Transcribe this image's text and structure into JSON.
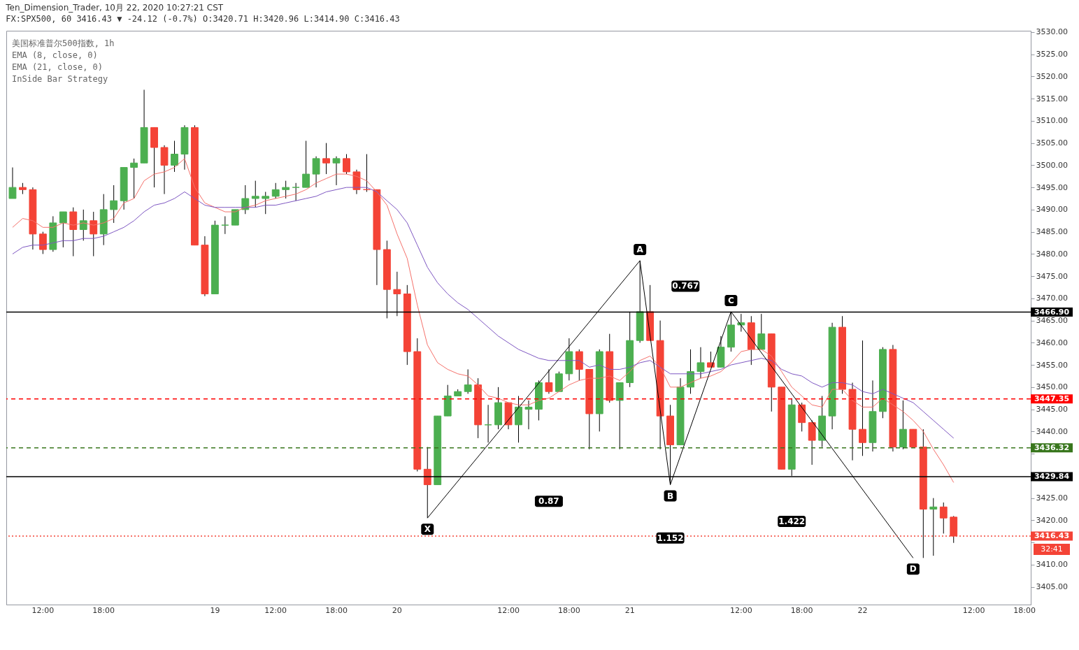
{
  "chart_data": {
    "type": "candlestick",
    "title": "Ten_Dimension_Trader, 10月 22, 2020 10:27:21 CST",
    "subtitle": "FX:SPX500, 60 3416.43 ▼ -24.12 (-0.7%) O:3420.71 H:3420.96 L:3414.90 C:3416.43",
    "categories": [
      null,
      null,
      null,
      "12:00",
      null,
      null,
      null,
      null,
      null,
      "18:00",
      null,
      null,
      null,
      null,
      null,
      null,
      null,
      null,
      null,
      null,
      "19",
      null,
      null,
      null,
      null,
      null,
      "12:00",
      null,
      null,
      null,
      null,
      null,
      "18:00",
      null,
      null,
      null,
      null,
      null,
      "20",
      null,
      null,
      null,
      null,
      null,
      null,
      null,
      null,
      null,
      null,
      "12:00",
      null,
      null,
      null,
      null,
      null,
      "18:00",
      null,
      null,
      null,
      null,
      null,
      "21",
      null,
      null,
      null,
      null,
      null,
      null,
      null,
      null,
      null,
      null,
      "12:00",
      null,
      null,
      null,
      null,
      null,
      "18:00",
      null,
      null,
      null,
      null,
      null,
      "22",
      null,
      null,
      null,
      null,
      null,
      null,
      null,
      null,
      null,
      null,
      "12:00",
      null,
      null,
      null,
      null,
      "18:00"
    ],
    "ohlc": [
      [
        3492.5,
        3499.5,
        3492.5,
        3495
      ],
      [
        3495,
        3496,
        3493.5,
        3494.5
      ],
      [
        3494.5,
        3495,
        3481,
        3484.5
      ],
      [
        3484.5,
        3485,
        3480,
        3481
      ],
      [
        3481,
        3488.5,
        3480.5,
        3487
      ],
      [
        3487,
        3489.5,
        3481.5,
        3489.5
      ],
      [
        3489.5,
        3490.5,
        3479.5,
        3485.5
      ],
      [
        3485.5,
        3490,
        3483,
        3487.5
      ],
      [
        3487.5,
        3489.5,
        3479.5,
        3484.5
      ],
      [
        3484.5,
        3493.5,
        3482,
        3490
      ],
      [
        3490,
        3495.5,
        3487,
        3492
      ],
      [
        3492,
        3499.5,
        3490,
        3499.5
      ],
      [
        3499.5,
        3501.5,
        3492.5,
        3500.5
      ],
      [
        3500.5,
        3517,
        3500.5,
        3508.5
      ],
      [
        3508.5,
        3508.5,
        3495,
        3504
      ],
      [
        3504,
        3504.5,
        3493.5,
        3500
      ],
      [
        3500,
        3505.5,
        3498.5,
        3502.5
      ],
      [
        3502.5,
        3509,
        3499,
        3508.5
      ],
      [
        3508.5,
        3509,
        3482,
        3482
      ],
      [
        3482,
        3484,
        3470.5,
        3471
      ],
      [
        3471,
        3487.5,
        3471,
        3486.5
      ],
      [
        3486.5,
        3488.5,
        3484.5,
        3486.5
      ],
      [
        3486.5,
        3490,
        3486.5,
        3490
      ],
      [
        3490,
        3495.5,
        3489,
        3492.5
      ],
      [
        3492.5,
        3496.5,
        3490.5,
        3493
      ],
      [
        3492.5,
        3494,
        3489,
        3493
      ],
      [
        3493,
        3496,
        3492.5,
        3494.5
      ],
      [
        3494.5,
        3496.5,
        3492.5,
        3495
      ],
      [
        3495,
        3496,
        3492,
        3495
      ],
      [
        3495,
        3505.5,
        3495,
        3498
      ],
      [
        3498,
        3502,
        3495,
        3501.5
      ],
      [
        3501.5,
        3505,
        3498,
        3500.5
      ],
      [
        3500.5,
        3502,
        3495.5,
        3501.5
      ],
      [
        3501.5,
        3502.5,
        3498,
        3498.5
      ],
      [
        3498.5,
        3499,
        3493.5,
        3494.5
      ],
      [
        3494.5,
        3502.5,
        3494,
        3494.5
      ],
      [
        3494.5,
        3494.5,
        3473,
        3481
      ],
      [
        3481,
        3483,
        3465.5,
        3472
      ],
      [
        3472,
        3476,
        3466,
        3471
      ],
      [
        3471,
        3473,
        3455,
        3458
      ],
      [
        3458,
        3461,
        3431,
        3431.5
      ],
      [
        3431.5,
        3436.5,
        3420.5,
        3428
      ],
      [
        3428,
        3443.5,
        3428,
        3443.5
      ],
      [
        3443.5,
        3450.5,
        3443.5,
        3448
      ],
      [
        3448,
        3449.5,
        3448,
        3449
      ],
      [
        3449,
        3454,
        3448.5,
        3450.5
      ],
      [
        3450.5,
        3452,
        3438.5,
        3441.5
      ],
      [
        3441.5,
        3446,
        3437.5,
        3441.5
      ],
      [
        3441.5,
        3450,
        3440.5,
        3446.5
      ],
      [
        3446.5,
        3446.5,
        3440.5,
        3441.5
      ],
      [
        3441.5,
        3448,
        3437.5,
        3445.5
      ],
      [
        3445,
        3447,
        3440.5,
        3445.5
      ],
      [
        3445,
        3451.5,
        3442.5,
        3451
      ],
      [
        3451,
        3454,
        3448.5,
        3449
      ],
      [
        3449,
        3453.5,
        3449,
        3453
      ],
      [
        3453,
        3461,
        3451.5,
        3458
      ],
      [
        3458,
        3458.5,
        3451.5,
        3454
      ],
      [
        3454,
        3454,
        3436,
        3444
      ],
      [
        3444,
        3458.5,
        3440,
        3458
      ],
      [
        3458,
        3462,
        3446.5,
        3447
      ],
      [
        3447,
        3451,
        3436,
        3451
      ],
      [
        3451,
        3467,
        3450,
        3460.5
      ],
      [
        3460.5,
        3478.5,
        3460,
        3467
      ],
      [
        3467,
        3473,
        3460.5,
        3460.5
      ],
      [
        3460.5,
        3465,
        3436,
        3443.5
      ],
      [
        3443.5,
        3446,
        3428,
        3437
      ],
      [
        3437,
        3452,
        3437,
        3450
      ],
      [
        3450,
        3458.5,
        3448.5,
        3453.5
      ],
      [
        3453.5,
        3459,
        3452,
        3455.5
      ],
      [
        3455.5,
        3458,
        3454.5,
        3454.5
      ],
      [
        3454.5,
        3461.5,
        3454.5,
        3459
      ],
      [
        3459,
        3467,
        3458,
        3464
      ],
      [
        3464,
        3466.5,
        3462.5,
        3464.5
      ],
      [
        3464.5,
        3466,
        3455,
        3458.5
      ],
      [
        3458.5,
        3466.5,
        3458.5,
        3462
      ],
      [
        3462,
        3462,
        3444.5,
        3450
      ],
      [
        3450,
        3450,
        3431.5,
        3431.5
      ],
      [
        3431.5,
        3447.5,
        3430,
        3446
      ],
      [
        3446,
        3446.5,
        3440,
        3442
      ],
      [
        3442,
        3442.5,
        3432.5,
        3438
      ],
      [
        3438,
        3448,
        3436.5,
        3443.5
      ],
      [
        3443.5,
        3464.5,
        3440.5,
        3463.5
      ],
      [
        3463.5,
        3466,
        3448.5,
        3449.5
      ],
      [
        3449.5,
        3451,
        3433.5,
        3440.5
      ],
      [
        3440.5,
        3460.5,
        3434.5,
        3437.5
      ],
      [
        3437.5,
        3451.5,
        3435.5,
        3444.5
      ],
      [
        3444.5,
        3459,
        3443,
        3458.5
      ],
      [
        3458.5,
        3459.5,
        3435.5,
        3436.5
      ],
      [
        3436.5,
        3447,
        3436,
        3440.5
      ],
      [
        3440.5,
        3440.5,
        3436.5,
        3436.5
      ],
      [
        3436.5,
        3440.5,
        3411.5,
        3422.5
      ],
      [
        3422.5,
        3425,
        3412,
        3423
      ],
      [
        3423,
        3424,
        3417,
        3420.5
      ],
      [
        3420.71,
        3420.96,
        3414.9,
        3416.43
      ],
      null,
      null,
      null,
      null,
      null,
      null,
      null
    ],
    "colors": [
      "#4caf50",
      "#f44336",
      "#f44336",
      "#f44336",
      "#4caf50",
      "#4caf50",
      "#f44336",
      "#4caf50",
      "#f44336",
      "#4caf50",
      "#4caf50",
      "#4caf50",
      "#4caf50",
      "#4caf50",
      "#f44336",
      "#f44336",
      "#4caf50",
      "#4caf50",
      "#f44336",
      "#f44336",
      "#4caf50",
      "#4caf50",
      "#4caf50",
      "#4caf50",
      "#4caf50",
      "#4caf50",
      "#4caf50",
      "#4caf50",
      "#4caf50",
      "#4caf50",
      "#4caf50",
      "#f44336",
      "#4caf50",
      "#f44336",
      "#f44336",
      "#f44336",
      "#f44336",
      "#f44336",
      "#f44336",
      "#f44336",
      "#f44336",
      "#f44336",
      "#4caf50",
      "#4caf50",
      "#4caf50",
      "#4caf50",
      "#f44336",
      "#4caf50",
      "#4caf50",
      "#f44336",
      "#4caf50",
      "#4caf50",
      "#4caf50",
      "#f44336",
      "#4caf50",
      "#4caf50",
      "#f44336",
      "#f44336",
      "#4caf50",
      "#f44336",
      "#4caf50",
      "#4caf50",
      "#4caf50",
      "#f44336",
      "#f44336",
      "#f44336",
      "#4caf50",
      "#4caf50",
      "#4caf50",
      "#f44336",
      "#4caf50",
      "#4caf50",
      "#4caf50",
      "#f44336",
      "#4caf50",
      "#f44336",
      "#f44336",
      "#4caf50",
      "#f44336",
      "#f44336",
      "#4caf50",
      "#4caf50",
      "#f44336",
      "#f44336",
      "#f44336",
      "#4caf50",
      "#4caf50",
      "#f44336",
      "#4caf50",
      "#f44336",
      "#f44336",
      "#4caf50",
      "#f44336",
      "#f44336",
      null,
      null,
      null,
      null,
      null,
      null,
      null
    ],
    "series": [
      {
        "type": "line",
        "color": "#f5716b",
        "values": [
          3486,
          3488,
          3487.5,
          3486,
          3486,
          3487,
          3486.5,
          3487,
          3486.5,
          3487,
          3488,
          3491.5,
          3492.5,
          3496.5,
          3498,
          3498.5,
          3499.5,
          3501.5,
          3495,
          3491.5,
          3490.5,
          3489.5,
          3489.5,
          3490.5,
          3491,
          3492,
          3492.5,
          3493,
          3493.5,
          3494.5,
          3496,
          3497,
          3498,
          3498,
          3497.5,
          3496.5,
          3494,
          3491,
          3484.5,
          3479,
          3468.5,
          3459.5,
          3455.5,
          3454,
          3453,
          3452.5,
          3450.5,
          3448,
          3447.5,
          3446.5,
          3446,
          3446,
          3447,
          3447.5,
          3449,
          3450.5,
          3451.5,
          3452,
          3452,
          3452.5,
          3451.5,
          3453.5,
          3456,
          3457,
          3454.5,
          3450,
          3450,
          3451,
          3452,
          3452.5,
          3453.5,
          3455.5,
          3458,
          3458.5,
          3458.5,
          3457,
          3453.5,
          3450,
          3448,
          3446,
          3445.5,
          3449.5,
          3449.5,
          3447,
          3445.5,
          3445.5,
          3447.5,
          3446,
          3444.5,
          3442.5,
          3440,
          3436,
          3432.5,
          3428.5,
          null,
          null,
          null,
          null,
          null,
          null,
          null
        ]
      },
      {
        "type": "line",
        "color": "#7e57c2",
        "values": [
          3480,
          3481.5,
          3482,
          3482,
          3482.5,
          3483,
          3483,
          3483.5,
          3483.5,
          3484,
          3485,
          3486,
          3487.5,
          3489.5,
          3491,
          3491.5,
          3492.5,
          3494,
          3492.5,
          3491,
          3490.5,
          3490.5,
          3490.5,
          3490.5,
          3490.5,
          3491,
          3491,
          3491.5,
          3492,
          3492.5,
          3493,
          3494,
          3494.5,
          3495,
          3495,
          3495,
          3494,
          3492,
          3490,
          3487,
          3482,
          3477,
          3473.5,
          3471,
          3469,
          3467.5,
          3465.5,
          3463.5,
          3461.5,
          3460,
          3458.5,
          3457.5,
          3456.5,
          3456,
          3456,
          3456,
          3456,
          3454.5,
          3455,
          3454,
          3454,
          3454.5,
          3455.5,
          3456,
          3454.5,
          3453,
          3453,
          3453,
          3453,
          3453.5,
          3454,
          3455,
          3455.5,
          3456,
          3456.5,
          3456,
          3454,
          3453,
          3452.5,
          3451,
          3450,
          3451,
          3451,
          3450.5,
          3449,
          3448.5,
          3449.5,
          3448.5,
          3447.5,
          3446.5,
          3444.5,
          3442.5,
          3440.5,
          3438.5,
          null,
          null,
          null,
          null,
          null,
          null,
          null
        ]
      },
      {
        "type": "line",
        "color": "#000000",
        "values": [
          null,
          null,
          null,
          null,
          null,
          null,
          null,
          null,
          null,
          null,
          null,
          null,
          null,
          null,
          null,
          null,
          null,
          null,
          null,
          null,
          null,
          null,
          null,
          null,
          null,
          null,
          null,
          null,
          null,
          null,
          null,
          null,
          null,
          null,
          null,
          null,
          null,
          null,
          null,
          null,
          null,
          3420.5,
          null,
          null,
          null,
          null,
          null,
          null,
          null,
          null,
          null,
          null,
          null,
          null,
          null,
          null,
          null,
          null,
          null,
          null,
          null,
          null,
          3478.5,
          null,
          null,
          3428,
          null,
          null,
          null,
          null,
          null,
          3467,
          null,
          null,
          null,
          null,
          null,
          null,
          null,
          null,
          null,
          null,
          null,
          null,
          null,
          null,
          null,
          null,
          null,
          3411.5,
          null,
          null,
          null,
          null,
          null,
          null,
          null,
          null,
          null,
          null,
          null
        ]
      }
    ],
    "ylim": [
      3401,
      3530.3
    ],
    "yticks": [
      {
        "value": 3405,
        "label": "3405.00"
      },
      {
        "value": 3410,
        "label": "3410.00"
      },
      {
        "value": 3415,
        "label": null
      },
      {
        "value": 3420,
        "label": "3420.00"
      },
      {
        "value": 3425,
        "label": "3425.00"
      },
      {
        "value": 3430,
        "label": null
      },
      {
        "value": 3435,
        "label": null
      },
      {
        "value": 3440,
        "label": "3440.00"
      },
      {
        "value": 3445,
        "label": "3445.00"
      },
      {
        "value": 3450,
        "label": "3450.00"
      },
      {
        "value": 3455,
        "label": "3455.00"
      },
      {
        "value": 3460,
        "label": "3460.00"
      },
      {
        "value": 3465,
        "label": "3465.00"
      },
      {
        "value": 3470,
        "label": "3470.00"
      },
      {
        "value": 3475,
        "label": "3475.00"
      },
      {
        "value": 3480,
        "label": "3480.00"
      },
      {
        "value": 3485,
        "label": "3485.00"
      },
      {
        "value": 3490,
        "label": "3490.00"
      },
      {
        "value": 3495,
        "label": "3495.00"
      },
      {
        "value": 3500,
        "label": "3500.00"
      },
      {
        "value": 3505,
        "label": "3505.00"
      },
      {
        "value": 3510,
        "label": "3510.00"
      },
      {
        "value": 3515,
        "label": "3515.00"
      },
      {
        "value": 3520,
        "label": "3520.00"
      },
      {
        "value": 3525,
        "label": "3525.00"
      },
      {
        "value": 3530,
        "label": "3530.00"
      }
    ],
    "ref_lines": [
      {
        "axis": "y",
        "value": 3466.9,
        "label": "3466.90",
        "color": "#000000",
        "line_style": "solid"
      },
      {
        "axis": "y",
        "value": 3447.35,
        "label": "3447.35",
        "color": "#ff0000",
        "line_style": "dashed"
      },
      {
        "axis": "y",
        "value": 3436.32,
        "label": "3436.32",
        "color": "#38761d",
        "line_style": "dashed"
      },
      {
        "axis": "y",
        "value": 3429.84,
        "label": "3429.84",
        "color": "#000000",
        "line_style": "solid"
      },
      {
        "axis": "y",
        "value": 3416.43,
        "label": "3416.43",
        "color": "#f44336",
        "line_style": "dotted"
      }
    ],
    "annotations": [
      "美国标准普尔500指数, 1h",
      "EMA (8, close, 0)",
      "EMA (21, close, 0)",
      "InSide Bar Strategy",
      "X",
      "A",
      "B",
      "C",
      "D",
      "0.767",
      "0.87",
      "1.422",
      "1.152",
      "32:41"
    ],
    "grid": false,
    "marker": "none",
    "line_style": "solid"
  }
}
